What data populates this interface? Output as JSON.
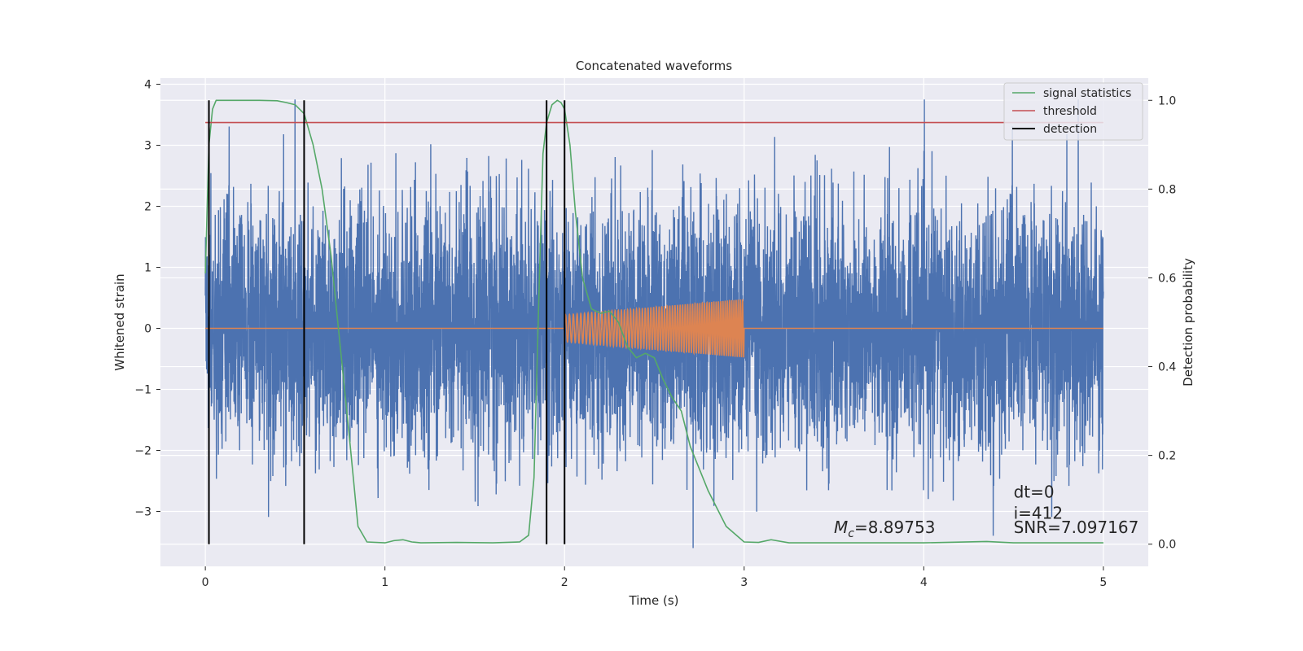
{
  "chart_data": {
    "type": "line",
    "title": "Concatenated waveforms",
    "xlabel": "Time (s)",
    "ylabel": "Whitened strain",
    "y2label": "Detection probability",
    "xlim": [
      -0.25,
      5.25
    ],
    "ylim": [
      -3.9,
      4.1
    ],
    "y2lim": [
      -0.05,
      1.05
    ],
    "x_ticks": [
      0,
      1,
      2,
      3,
      4,
      5
    ],
    "x_tick_labels": [
      "0",
      "1",
      "2",
      "3",
      "4",
      "5"
    ],
    "y_ticks": [
      -3,
      -2,
      -1,
      0,
      1,
      2,
      3,
      4
    ],
    "y_tick_labels": [
      "−3",
      "−2",
      "−1",
      "0",
      "1",
      "2",
      "3",
      "4"
    ],
    "y2_ticks": [
      0.0,
      0.2,
      0.4,
      0.6,
      0.8,
      1.0
    ],
    "y2_tick_labels": [
      "0.0",
      "0.2",
      "0.4",
      "0.6",
      "0.8",
      "1.0"
    ],
    "grid": true,
    "legend_position": "top-right",
    "legend": [
      "signal statistics",
      "threshold",
      "detection"
    ],
    "series": [
      {
        "name": "",
        "color": "#4c72b0",
        "axis": "left",
        "kind": "noise",
        "x_range": [
          0,
          5
        ],
        "amplitude_rms": 1.0
      },
      {
        "name": "",
        "color": "#dd8452",
        "axis": "left",
        "kind": "chirp",
        "x_range": [
          0,
          5
        ],
        "chirp_start": 2.0,
        "chirp_end": 3.0,
        "amp_start": 0.22,
        "amp_end": 0.48
      },
      {
        "name": "signal statistics",
        "color": "#55a868",
        "axis": "right",
        "x": [
          0,
          0.02,
          0.04,
          0.06,
          0.1,
          0.2,
          0.3,
          0.4,
          0.45,
          0.5,
          0.55,
          0.6,
          0.65,
          0.7,
          0.75,
          0.8,
          0.85,
          0.9,
          1.0,
          1.05,
          1.1,
          1.15,
          1.2,
          1.4,
          1.6,
          1.75,
          1.8,
          1.83,
          1.86,
          1.88,
          1.9,
          1.93,
          1.96,
          1.98,
          2.0,
          2.03,
          2.06,
          2.1,
          2.15,
          2.2,
          2.25,
          2.3,
          2.35,
          2.4,
          2.45,
          2.5,
          2.55,
          2.6,
          2.65,
          2.7,
          2.8,
          2.9,
          3.0,
          3.08,
          3.15,
          3.25,
          3.5,
          4.0,
          4.35,
          4.5,
          5.0
        ],
        "y": [
          0.61,
          0.9,
          0.98,
          1.0,
          1.0,
          1.0,
          1.0,
          0.999,
          0.995,
          0.99,
          0.97,
          0.9,
          0.8,
          0.65,
          0.45,
          0.25,
          0.04,
          0.005,
          0.003,
          0.008,
          0.01,
          0.005,
          0.003,
          0.004,
          0.003,
          0.005,
          0.02,
          0.15,
          0.6,
          0.88,
          0.95,
          0.99,
          1.0,
          0.995,
          0.98,
          0.9,
          0.75,
          0.6,
          0.53,
          0.52,
          0.525,
          0.5,
          0.445,
          0.42,
          0.43,
          0.42,
          0.37,
          0.33,
          0.3,
          0.22,
          0.12,
          0.04,
          0.005,
          0.004,
          0.01,
          0.003,
          0.003,
          0.003,
          0.006,
          0.003,
          0.003
        ]
      },
      {
        "name": "threshold",
        "color": "#c44e52",
        "axis": "right",
        "x": [
          0,
          5
        ],
        "y": [
          0.95,
          0.95
        ]
      }
    ],
    "detections": {
      "name": "detection",
      "color": "#000000",
      "x": [
        0.02,
        0.55,
        1.9,
        2.0
      ],
      "y_range": [
        0.0,
        1.0
      ]
    },
    "annotations": {
      "mc": {
        "math_letter": "M",
        "math_sub": "c",
        "text": "=8.89753",
        "x": 3.5,
        "y": 0.025
      },
      "dt": {
        "text": "dt=0",
        "x": 4.5,
        "y": 0.105
      },
      "i": {
        "text": "i=412",
        "x": 4.5,
        "y": 0.057
      },
      "snr": {
        "text": "SNR=7.097167",
        "x": 4.5,
        "y": 0.025
      }
    }
  }
}
